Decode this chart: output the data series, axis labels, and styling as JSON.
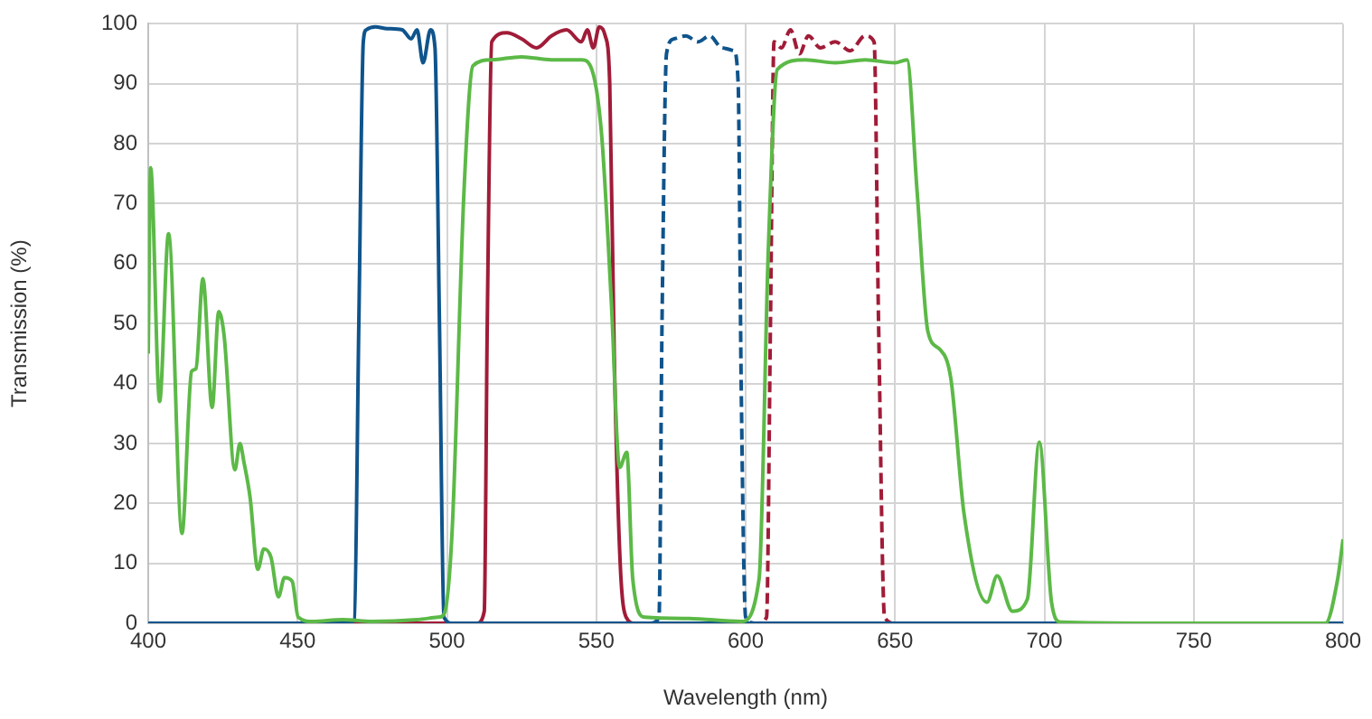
{
  "chart_data": {
    "type": "line",
    "xlabel": "Wavelength (nm)",
    "ylabel": "Transmission (%)",
    "xlim": [
      400,
      800
    ],
    "ylim": [
      0,
      100
    ],
    "xticks": [
      400,
      450,
      500,
      550,
      600,
      650,
      700,
      750,
      800
    ],
    "yticks": [
      0,
      10,
      20,
      30,
      40,
      50,
      60,
      70,
      80,
      90,
      100
    ],
    "grid": true,
    "marker": "none",
    "series": [
      {
        "color": "#5cb947",
        "line_style": "solid",
        "x": [
          400,
          400.8,
          403.8,
          406.8,
          411.3,
          414.5,
          416,
          418.3,
          421.4,
          423.6,
          425.4,
          429,
          430.7,
          432,
          434.1,
          436.7,
          438.7,
          441.1,
          443.6,
          445.6,
          448.2,
          450.2,
          455,
          465,
          475,
          490,
          497,
          499,
          501.7,
          505.7,
          508.7,
          515,
          525,
          535,
          545,
          548,
          551.7,
          555.1,
          557.8,
          560.2,
          562.2,
          566.2,
          580,
          598.5,
          604.5,
          607.6,
          610.6,
          620,
          630,
          640,
          650,
          654,
          657.4,
          661,
          665,
          668.7,
          673.1,
          680.8,
          684.2,
          689.3,
          694.3,
          698.3,
          702.4,
          705.4,
          750,
          794.1,
          798.2,
          800
        ],
        "values": [
          45,
          76,
          37,
          65,
          15,
          42,
          42.5,
          57.5,
          36,
          52,
          48,
          25.6,
          30,
          27,
          21,
          9,
          12.4,
          11,
          4.4,
          7.6,
          7,
          1,
          0.3,
          0.6,
          0.3,
          0.6,
          1,
          1.5,
          15,
          72,
          93,
          94,
          94.5,
          94,
          94,
          93,
          82,
          53,
          26,
          28.5,
          7.4,
          1,
          0.8,
          0.3,
          7.4,
          62.5,
          92.4,
          94,
          93.5,
          94,
          93.5,
          94,
          72,
          48.7,
          45.7,
          40.8,
          18.3,
          3.5,
          7.9,
          2,
          4,
          30.2,
          3.5,
          0.2,
          0,
          0,
          7.4,
          14
        ]
      },
      {
        "color": "#0f548c",
        "line_style": "solid",
        "x": [
          400,
          466,
          469,
          470.5,
          472,
          473,
          476,
          480,
          485,
          488,
          490,
          492,
          494.5,
          496,
          497.5,
          499,
          502,
          800
        ],
        "values": [
          0,
          0,
          0.5,
          50,
          97,
          99,
          99.5,
          99.2,
          99,
          97.5,
          99,
          93.5,
          99,
          96,
          50,
          1,
          0,
          0
        ]
      },
      {
        "color": "#a01c38",
        "line_style": "solid",
        "x": [
          400,
          510,
          512.5,
          513.5,
          515,
          520,
          525,
          530,
          535,
          540,
          545,
          547,
          549,
          551,
          553,
          554.5,
          556,
          558,
          560,
          563,
          800
        ],
        "values": [
          0,
          0,
          2,
          50,
          97,
          98.5,
          97.5,
          96,
          98,
          99,
          97,
          99,
          96,
          99.5,
          98,
          90,
          45,
          10,
          1,
          0,
          0
        ]
      },
      {
        "color": "#0f548c",
        "line_style": "dashed",
        "x": [
          568,
          571,
          572,
          573.5,
          576,
          580,
          584,
          588,
          592,
          596,
          597.5,
          598.5,
          600,
          603
        ],
        "values": [
          0,
          1,
          50,
          95,
          97.5,
          98,
          97,
          98,
          96,
          95.5,
          90,
          40,
          1,
          0
        ]
      },
      {
        "color": "#a01c38",
        "line_style": "dashed",
        "x": [
          400,
          604,
          607,
          608.3,
          609.5,
          612,
          615,
          618,
          621,
          625,
          630,
          635,
          640,
          643,
          644.5,
          646.5,
          650,
          800
        ],
        "values": [
          0,
          0,
          1,
          50,
          97,
          96,
          99,
          95,
          98,
          96,
          97,
          95.5,
          98,
          97,
          50,
          1,
          0,
          0
        ]
      }
    ]
  }
}
